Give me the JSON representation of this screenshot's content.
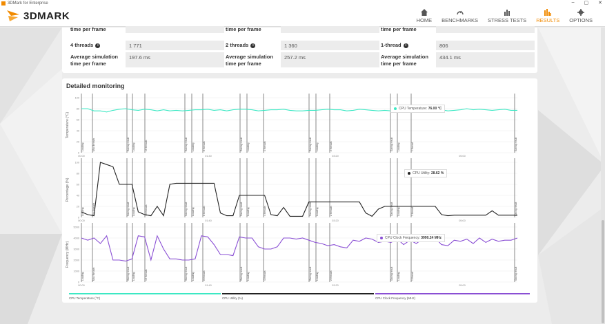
{
  "window": {
    "title": "3DMark for Enterprise"
  },
  "brand": {
    "name": "3DMARK",
    "accent": "#f18a00"
  },
  "nav": [
    {
      "label": "HOME",
      "icon": "home-icon"
    },
    {
      "label": "BENCHMARKS",
      "icon": "gauge-icon"
    },
    {
      "label": "STRESS TESTS",
      "icon": "stress-chart-icon"
    },
    {
      "label": "RESULTS",
      "icon": "results-bars-icon",
      "active": true
    },
    {
      "label": "OPTIONS",
      "icon": "gear-icon"
    }
  ],
  "scores": {
    "top_row_label": "time per frame",
    "columns": [
      {
        "threads_label": "4 threads",
        "threads_value": "1 771",
        "avg_label": "Average simulation time per frame",
        "avg_value": "197.6 ms"
      },
      {
        "threads_label": "2 threads",
        "threads_value": "1 360",
        "avg_label": "Average simulation time per frame",
        "avg_value": "257.2 ms"
      },
      {
        "threads_label": "1-thread",
        "threads_value": "806",
        "avg_label": "Average simulation time per frame",
        "avg_value": "434.1 ms"
      }
    ]
  },
  "monitoring": {
    "title": "Detailed monitoring",
    "time_ticks": [
      "00:00",
      "01:40",
      "03:20",
      "05:00"
    ],
    "markers": [
      "Loading",
      "Max threads",
      "Saving result",
      "Loading",
      "16 threads",
      "Saving result",
      "Loading",
      "8 threads",
      "Saving result",
      "Loading",
      "4 threads",
      "Saving result",
      "Loading",
      "2 threads",
      "Saving result",
      "Loading",
      "1 thread",
      "Saving result"
    ],
    "legend": [
      {
        "label": "CPU Temperature (°C)",
        "color": "#3de8c4"
      },
      {
        "label": "CPU Utility (%)",
        "color": "#222222"
      },
      {
        "label": "CPU Clock Frequency (MHz)",
        "color": "#8a4fd4"
      }
    ]
  },
  "chart_data": [
    {
      "type": "line",
      "ylabel": "Temperature (°C)",
      "yticks": [
        "100",
        "80",
        "60",
        "40",
        "20",
        "0"
      ],
      "ylim": [
        0,
        100
      ],
      "series": [
        {
          "name": "CPU Temperature (°C)",
          "color": "#3de8c4",
          "values": [
            80,
            80,
            76,
            76,
            74,
            77,
            79,
            80,
            78,
            77,
            79,
            78,
            76,
            78,
            76,
            77,
            76,
            77,
            78,
            78,
            79,
            77,
            78,
            76,
            78,
            79,
            79,
            78,
            76,
            77,
            78,
            78,
            79,
            77,
            76,
            76,
            77,
            77,
            78,
            79,
            78,
            78,
            76,
            77,
            79,
            78,
            77,
            76,
            77,
            76,
            75,
            77,
            78,
            80,
            78,
            77,
            76,
            78,
            76,
            77,
            78,
            80,
            78,
            79,
            78,
            77,
            78,
            79,
            77,
            77
          ]
        }
      ],
      "tooltip": {
        "label": "CPU Temperature",
        "value": "76.00 °C"
      }
    },
    {
      "type": "line",
      "ylabel": "Percentage (%)",
      "yticks": [
        "100",
        "80",
        "60",
        "40",
        "20",
        "0"
      ],
      "ylim": [
        0,
        100
      ],
      "series": [
        {
          "name": "CPU Utility (%)",
          "color": "#222222",
          "values": [
            10,
            5,
            3,
            100,
            96,
            92,
            60,
            60,
            60,
            10,
            5,
            3,
            20,
            3,
            60,
            62,
            62,
            62,
            62,
            62,
            62,
            62,
            8,
            3,
            3,
            40,
            40,
            40,
            40,
            40,
            5,
            3,
            18,
            2,
            2,
            2,
            28,
            28,
            28,
            28,
            28,
            28,
            28,
            28,
            28,
            8,
            2,
            15,
            20,
            20,
            20,
            20,
            20,
            20,
            20,
            20,
            20,
            5,
            3,
            4,
            4,
            4,
            4,
            4,
            4,
            12,
            4,
            4,
            4,
            4
          ]
        }
      ],
      "tooltip": {
        "label": "CPU Utility",
        "value": "28.62 %"
      }
    },
    {
      "type": "line",
      "ylabel": "Frequency (MHz)",
      "yticks": [
        "5000",
        "4000",
        "3000",
        "2000",
        "1000",
        "0"
      ],
      "ylim": [
        0,
        5000
      ],
      "series": [
        {
          "name": "CPU Clock Frequency (MHz)",
          "color": "#8a4fd4",
          "values": [
            4000,
            3800,
            4000,
            3500,
            4200,
            2000,
            2000,
            1900,
            2100,
            4200,
            4100,
            2000,
            4200,
            3000,
            2100,
            2100,
            2000,
            2000,
            2100,
            4200,
            4100,
            3400,
            2500,
            2500,
            2400,
            4100,
            4000,
            4000,
            3200,
            3000,
            3000,
            3200,
            4000,
            4000,
            3900,
            4000,
            3800,
            3600,
            3500,
            3300,
            3400,
            3200,
            3100,
            3800,
            3700,
            4000,
            3900,
            3600,
            3700,
            3600,
            3900,
            3400,
            3800,
            3500,
            3900,
            3800,
            4000,
            3400,
            3300,
            3800,
            3700,
            3900,
            3500,
            4000,
            3600,
            3900,
            3700,
            3800,
            3800,
            4000
          ]
        }
      ],
      "tooltip": {
        "label": "CPU Clock Frequency",
        "value": "3990.24 MHz"
      }
    }
  ]
}
